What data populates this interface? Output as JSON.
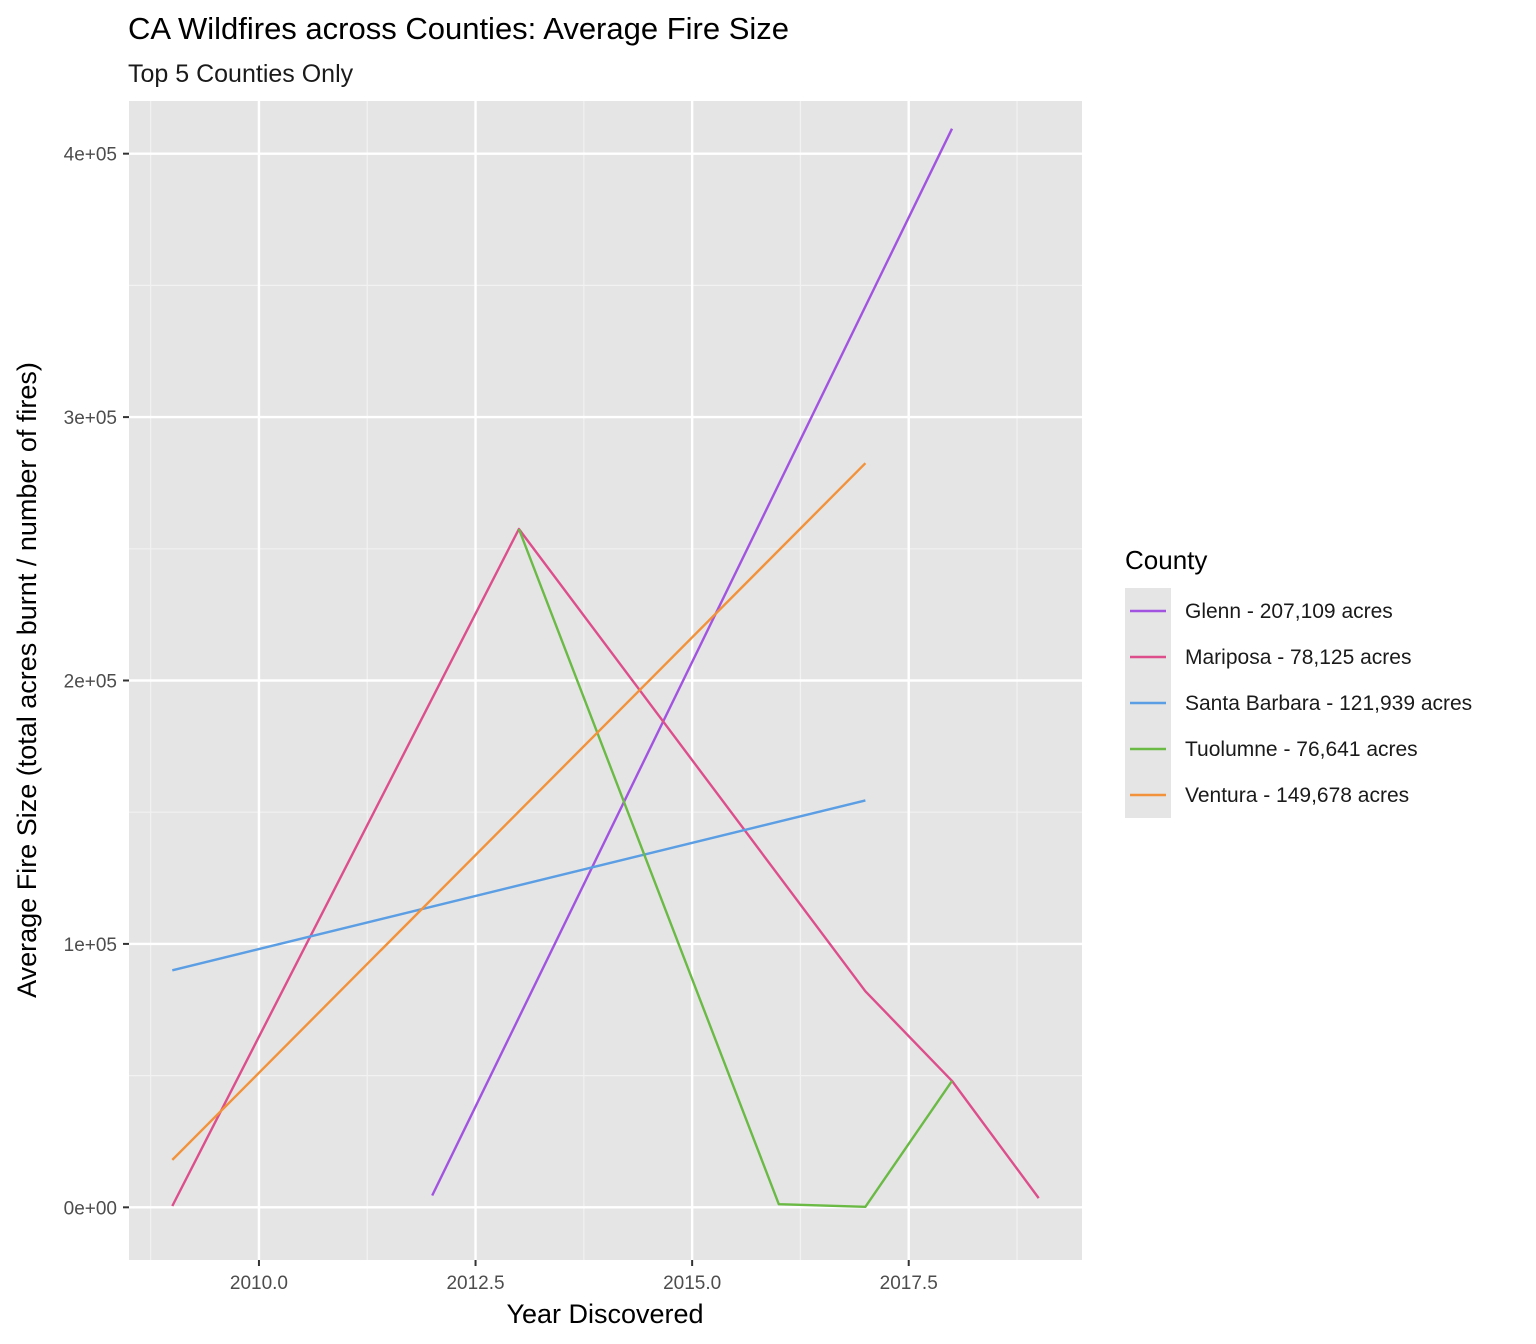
{
  "chart_data": {
    "type": "line",
    "title": "CA Wildfires across Counties: Average Fire Size",
    "subtitle": "Top 5 Counties Only",
    "xlabel": "Year Discovered",
    "ylabel": "Average Fire Size (total acres burnt / number of fires)",
    "xlim": [
      2008.5,
      2019.5
    ],
    "ylim": [
      -20000,
      420000
    ],
    "x_ticks": [
      2010.0,
      2012.5,
      2015.0,
      2017.5
    ],
    "x_tick_labels": [
      "2010.0",
      "2012.5",
      "2015.0",
      "2017.5"
    ],
    "y_ticks": [
      0,
      100000,
      200000,
      300000,
      400000
    ],
    "y_tick_labels": [
      "0e+00",
      "1e+05",
      "2e+05",
      "3e+05",
      "4e+05"
    ],
    "grid": true,
    "legend": {
      "title": "County",
      "position": "right"
    },
    "series": [
      {
        "name": "Glenn - 207,109 acres",
        "color": "#A254E0",
        "x": [
          2012,
          2018
        ],
        "y": [
          4500,
          409500
        ]
      },
      {
        "name": "Mariposa - 78,125 acres",
        "color": "#DD4E8C",
        "x": [
          2009,
          2013,
          2017,
          2018,
          2019
        ],
        "y": [
          500,
          257500,
          82000,
          48000,
          3500
        ]
      },
      {
        "name": "Santa Barbara - 121,939 acres",
        "color": "#5B9EE4",
        "x": [
          2009,
          2017
        ],
        "y": [
          90000,
          154500
        ]
      },
      {
        "name": "Tuolumne - 76,641 acres",
        "color": "#6ABA45",
        "x": [
          2013,
          2016,
          2017,
          2018
        ],
        "y": [
          257500,
          1200,
          200,
          48000
        ]
      },
      {
        "name": "Ventura - 149,678 acres",
        "color": "#F2923B",
        "x": [
          2009,
          2017
        ],
        "y": [
          18000,
          282500
        ]
      }
    ]
  }
}
